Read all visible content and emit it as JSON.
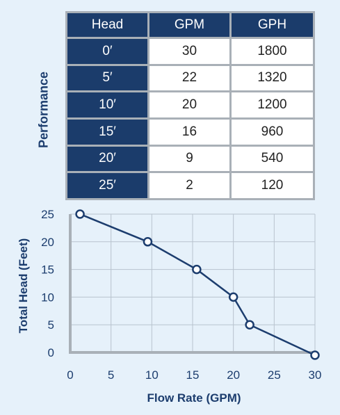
{
  "side_label": "Performance",
  "table": {
    "headers": [
      "Head",
      "GPM",
      "GPH"
    ],
    "rows": [
      [
        "0′",
        "30",
        "1800"
      ],
      [
        "5′",
        "22",
        "1320"
      ],
      [
        "10′",
        "20",
        "1200"
      ],
      [
        "15′",
        "16",
        "960"
      ],
      [
        "20′",
        "9",
        "540"
      ],
      [
        "25′",
        "2",
        "120"
      ]
    ]
  },
  "chart_data": {
    "type": "line",
    "xlabel": "Flow Rate (GPM)",
    "ylabel": "Total Head (Feet)",
    "xlim": [
      0,
      30
    ],
    "ylim": [
      0,
      25
    ],
    "xticks": [
      0,
      5,
      10,
      15,
      20,
      25,
      30
    ],
    "yticks": [
      0,
      5,
      10,
      15,
      20,
      25
    ],
    "grid": true,
    "series": [
      {
        "x": [
          1.2,
          9.5,
          15.5,
          20,
          22,
          30
        ],
        "y": [
          25,
          20,
          15,
          10,
          5,
          -0.5
        ]
      }
    ],
    "colors": {
      "line": "#1c3d6e",
      "grid": "#b8c3ce",
      "axis": "#a9b0b7",
      "text": "#1c3d6e"
    }
  }
}
